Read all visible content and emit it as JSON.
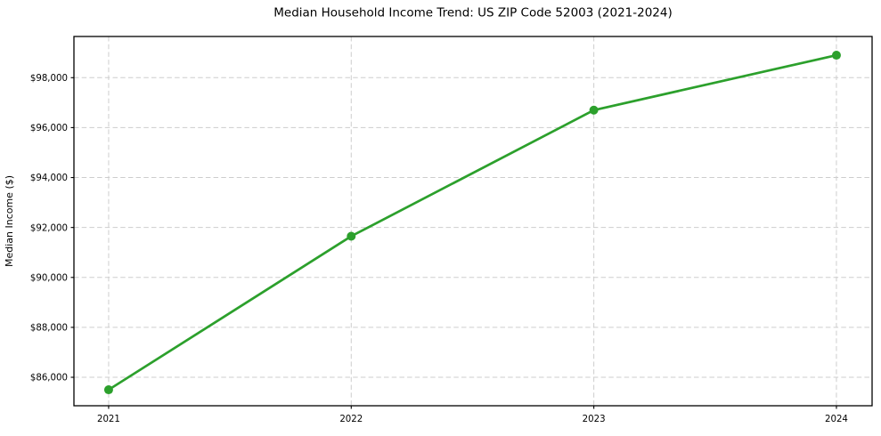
{
  "chart_data": {
    "type": "line",
    "title": "Median Household Income Trend: US ZIP Code 52003 (2021-2024)",
    "xlabel": "",
    "ylabel": "Median Income ($)",
    "x": [
      2021,
      2022,
      2023,
      2024
    ],
    "xtick_labels": [
      "2021",
      "2022",
      "2023",
      "2024"
    ],
    "series": [
      {
        "name": "Median Household Income",
        "values": [
          85500,
          91650,
          96700,
          98900
        ],
        "color": "#2ca02c"
      }
    ],
    "xlim": [
      2020.857,
      2024.147
    ],
    "ylim": [
      84860,
      99650
    ],
    "yticks": [
      86000,
      88000,
      90000,
      92000,
      94000,
      96000,
      98000
    ],
    "ytick_labels": [
      "$86,000",
      "$88,000",
      "$90,000",
      "$92,000",
      "$94,000",
      "$96,000",
      "$98,000"
    ],
    "grid": true,
    "grid_style": "dashed",
    "legend": false,
    "legend_position": "none",
    "colors": {
      "line": "#2ca02c",
      "marker": "#2ca02c",
      "grid": "#cdcdcd",
      "axis": "#000000",
      "text": "#000000",
      "background": "#ffffff"
    }
  }
}
